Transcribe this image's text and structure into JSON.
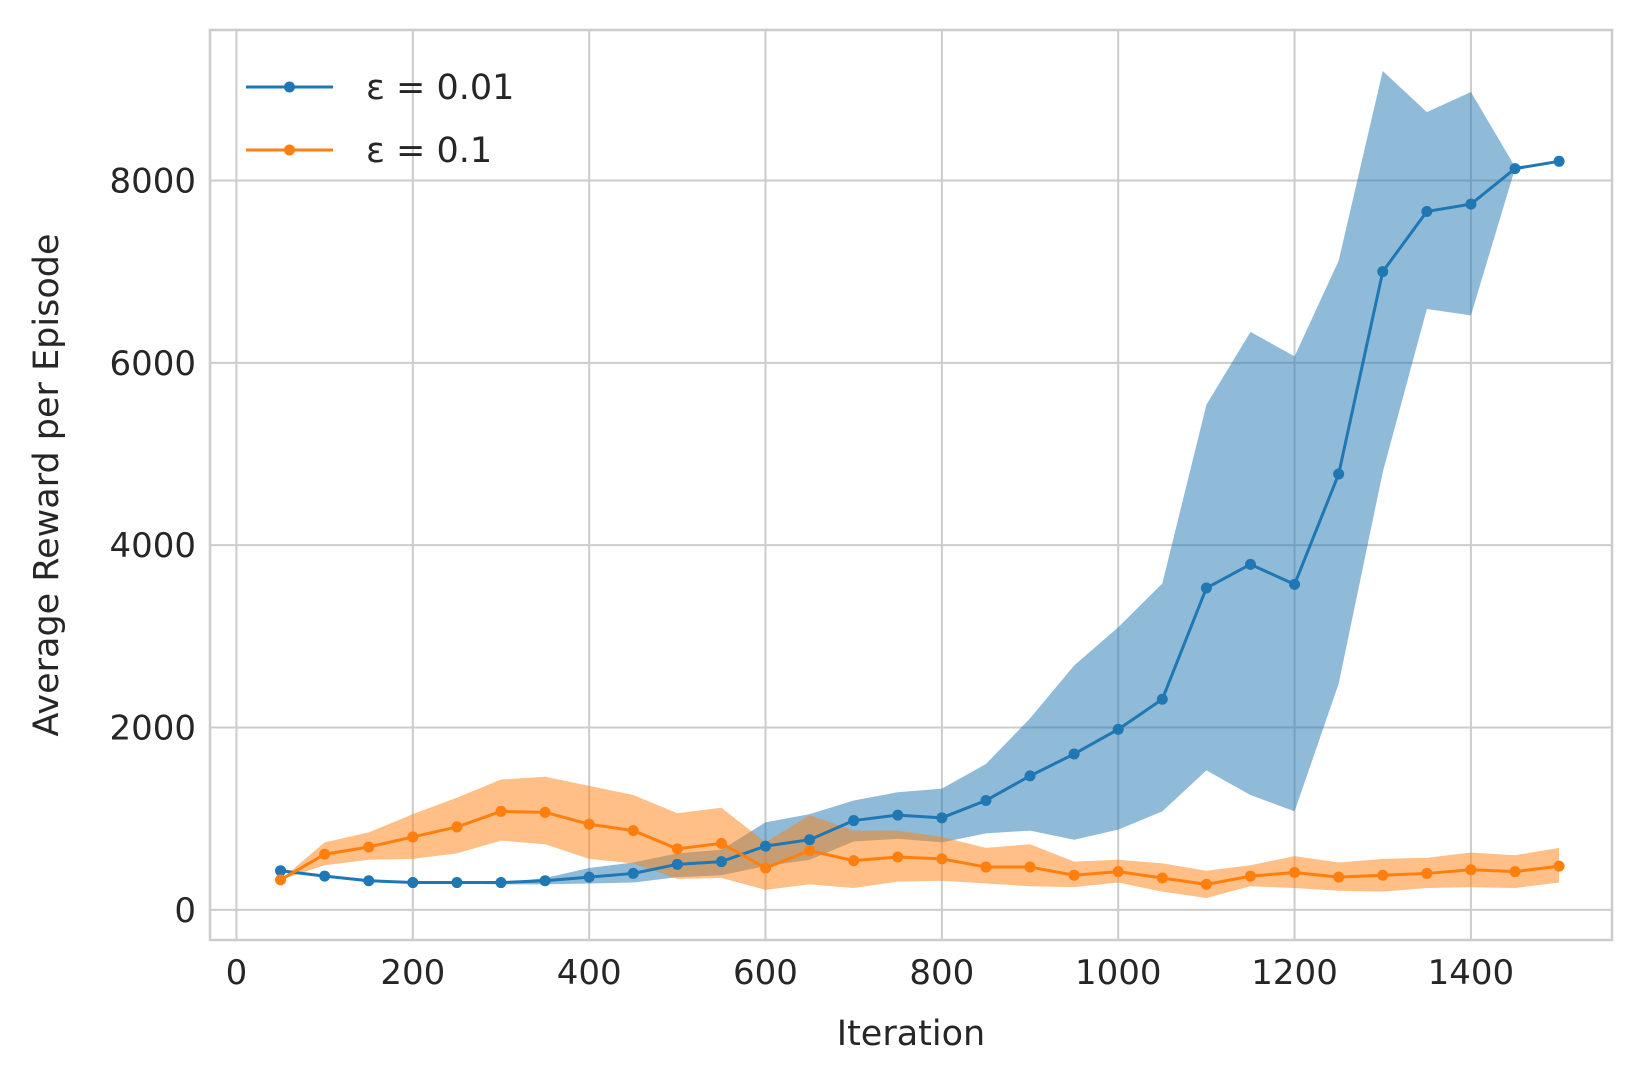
{
  "chart_data": {
    "type": "line",
    "title": "",
    "xlabel": "Iteration",
    "ylabel": "Average Reward per Episode",
    "xlim": [
      -30,
      1560
    ],
    "ylim": [
      -330,
      9650
    ],
    "x_ticks": [
      0,
      200,
      400,
      600,
      800,
      1000,
      1200,
      1400
    ],
    "x_tick_labels": [
      "0",
      "200",
      "400",
      "600",
      "800",
      "1000",
      "1200",
      "1400"
    ],
    "y_ticks": [
      0,
      2000,
      4000,
      6000,
      8000
    ],
    "y_tick_labels": [
      "0",
      "2000",
      "4000",
      "6000",
      "8000"
    ],
    "grid": true,
    "legend_position": "top-left",
    "x": [
      50,
      100,
      150,
      200,
      250,
      300,
      350,
      400,
      450,
      500,
      550,
      600,
      650,
      700,
      750,
      800,
      850,
      900,
      950,
      1000,
      1050,
      1100,
      1150,
      1200,
      1250,
      1300,
      1350,
      1400,
      1450,
      1500
    ],
    "series": [
      {
        "name": "ε = 0.01",
        "color": "#1f77b4",
        "band_color": "#1f77b4",
        "values": [
          430,
          370,
          320,
          300,
          300,
          300,
          320,
          360,
          400,
          500,
          530,
          700,
          770,
          980,
          1040,
          1010,
          1200,
          1470,
          1710,
          1980,
          2310,
          3530,
          3790,
          3570,
          4780,
          7000,
          7660,
          7740,
          8130,
          8210
        ],
        "lower": [
          430,
          370,
          320,
          300,
          290,
          280,
          280,
          290,
          300,
          360,
          380,
          480,
          550,
          750,
          780,
          740,
          840,
          870,
          770,
          880,
          1080,
          1530,
          1260,
          1080,
          2480,
          4800,
          6590,
          6520,
          8130,
          8210
        ],
        "upper": [
          430,
          370,
          320,
          300,
          300,
          300,
          350,
          460,
          520,
          620,
          660,
          960,
          1050,
          1200,
          1290,
          1330,
          1600,
          2100,
          2680,
          3100,
          3580,
          5540,
          6340,
          6070,
          7120,
          9200,
          8750,
          8970,
          8150,
          8210
        ]
      },
      {
        "name": "ε = 0.1",
        "color": "#ff7f0e",
        "band_color": "#ff7f0e",
        "values": [
          330,
          610,
          690,
          800,
          910,
          1080,
          1070,
          940,
          870,
          670,
          730,
          460,
          650,
          540,
          580,
          560,
          470,
          470,
          380,
          420,
          350,
          280,
          370,
          410,
          360,
          380,
          400,
          440,
          420,
          480
        ],
        "lower": [
          330,
          490,
          550,
          560,
          620,
          760,
          720,
          560,
          510,
          340,
          350,
          220,
          280,
          240,
          310,
          320,
          290,
          260,
          250,
          300,
          200,
          130,
          260,
          240,
          210,
          200,
          240,
          250,
          240,
          300
        ],
        "upper": [
          330,
          740,
          850,
          1050,
          1230,
          1430,
          1460,
          1360,
          1260,
          1060,
          1120,
          740,
          1040,
          870,
          870,
          800,
          680,
          720,
          530,
          550,
          510,
          430,
          490,
          590,
          520,
          560,
          570,
          630,
          600,
          680
        ]
      }
    ]
  }
}
